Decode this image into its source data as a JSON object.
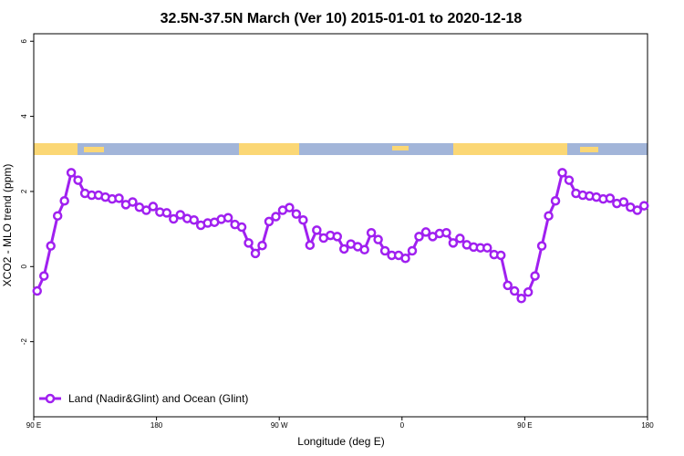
{
  "chart_data": {
    "type": "line",
    "title": "32.5N-37.5N March (Ver 10)   2015-01-01 to 2020-12-18",
    "x_label": "Longitude (deg E)",
    "y_label": "XCO2 - MLO trend (ppm)",
    "xlim": [
      90,
      540
    ],
    "xticks": [
      {
        "value": 90,
        "label": "90 E"
      },
      {
        "value": 180,
        "label": "180"
      },
      {
        "value": 270,
        "label": "90 W"
      },
      {
        "value": 360,
        "label": "0"
      },
      {
        "value": 450,
        "label": "90 E"
      },
      {
        "value": 540,
        "label": "180"
      }
    ],
    "ylim": [
      -4,
      6.2
    ],
    "yticks": [
      6,
      4,
      2,
      0,
      -2
    ],
    "legend": "bottom-left",
    "x": [
      92.5,
      97.5,
      102.5,
      107.5,
      112.5,
      117.5,
      122.5,
      127.5,
      132.5,
      137.5,
      142.5,
      147.5,
      152.5,
      157.5,
      162.5,
      167.5,
      172.5,
      177.5,
      182.5,
      187.5,
      192.5,
      197.5,
      202.5,
      207.5,
      212.5,
      217.5,
      222.5,
      227.5,
      232.5,
      237.5,
      242.5,
      247.5,
      252.5,
      257.5,
      262.5,
      267.5,
      272.5,
      277.5,
      282.5,
      287.5,
      292.5,
      297.5,
      302.5,
      307.5,
      312.5,
      317.5,
      322.5,
      327.5,
      332.5,
      337.5,
      342.5,
      347.5,
      352.5,
      357.5,
      362.5,
      367.5,
      372.5,
      377.5,
      382.5,
      387.5,
      392.5,
      397.5,
      402.5,
      407.5,
      412.5,
      417.5,
      422.5,
      427.5,
      432.5,
      437.5,
      442.5,
      447.5,
      452.5,
      457.5,
      462.5,
      467.5,
      472.5,
      477.5,
      482.5,
      487.5,
      492.5,
      497.5,
      502.5,
      507.5,
      512.5,
      517.5,
      522.5,
      527.5,
      532.5,
      537.5
    ],
    "series": [
      {
        "name": "Land (Nadir&Glint) and Ocean (Glint)",
        "color": "#a020f0",
        "values": [
          -0.65,
          -0.25,
          0.55,
          1.35,
          1.75,
          2.5,
          2.3,
          1.95,
          1.9,
          1.9,
          1.85,
          1.8,
          1.82,
          1.65,
          1.72,
          1.58,
          1.5,
          1.6,
          1.45,
          1.43,
          1.27,
          1.38,
          1.28,
          1.24,
          1.1,
          1.16,
          1.18,
          1.26,
          1.3,
          1.12,
          1.05,
          0.63,
          0.35,
          0.56,
          1.2,
          1.33,
          1.5,
          1.57,
          1.4,
          1.24,
          0.57,
          0.97,
          0.76,
          0.83,
          0.8,
          0.47,
          0.6,
          0.53,
          0.45,
          0.9,
          0.72,
          0.42,
          0.3,
          0.3,
          0.22,
          0.42,
          0.8,
          0.92,
          0.8,
          0.88,
          0.9,
          0.63,
          0.75,
          0.58,
          0.52,
          0.5,
          0.5,
          0.32,
          0.3,
          -0.5,
          -0.65,
          -0.85,
          -0.68,
          -0.25,
          0.55,
          1.35,
          1.75,
          2.5,
          2.3,
          1.95,
          1.9,
          1.88,
          1.85,
          1.8,
          1.82,
          1.68,
          1.72,
          1.58,
          1.5,
          1.62
        ]
      }
    ]
  }
}
